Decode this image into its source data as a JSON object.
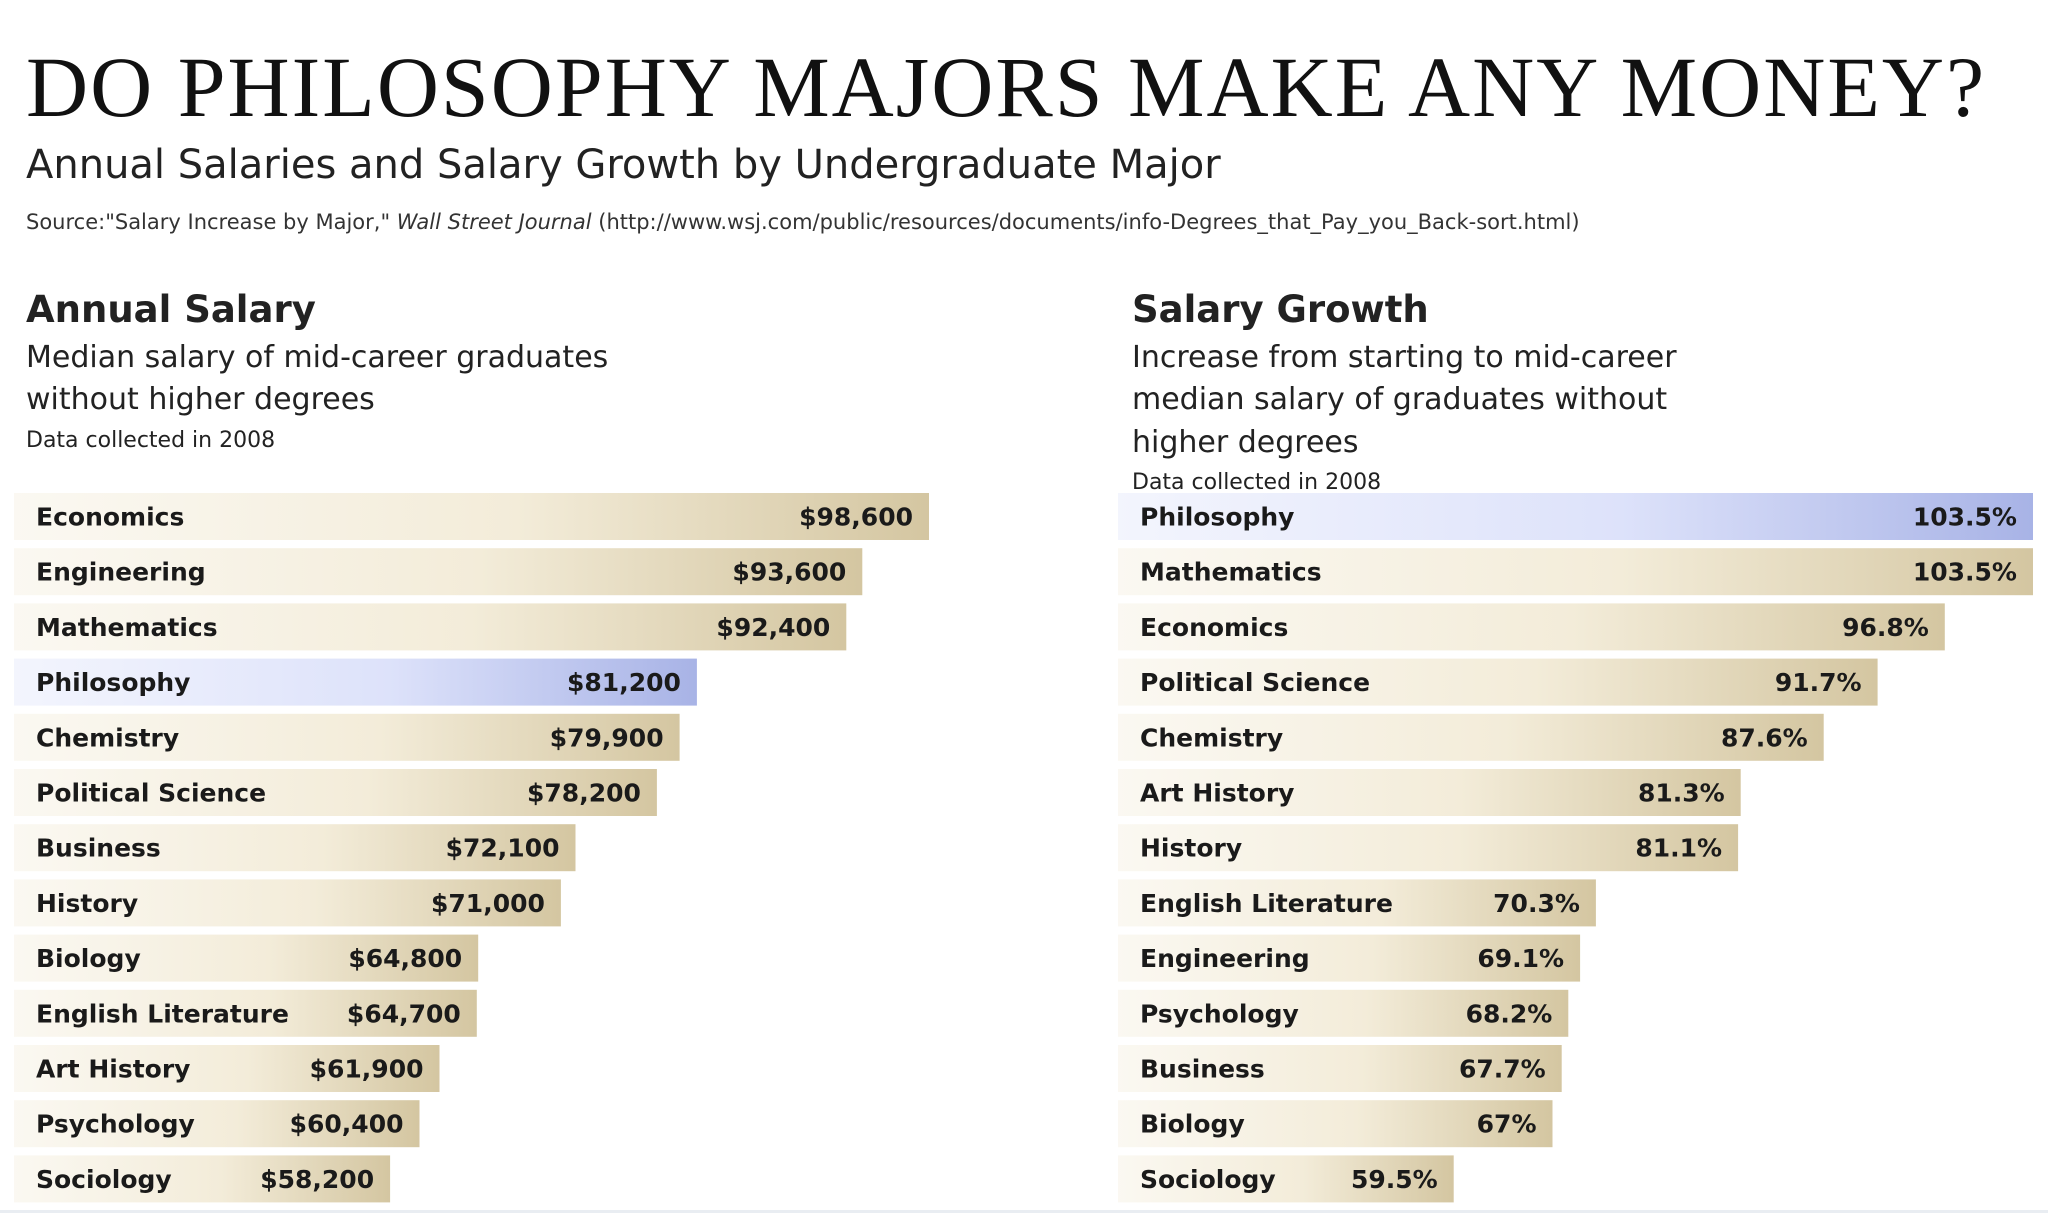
{
  "header": {
    "title": "DO PHILOSOPHY MAJORS MAKE ANY MONEY?",
    "subtitle": "Annual Salaries and Salary Growth by Undergraduate Major",
    "source_prefix": "Source:\"Salary Increase by Major,\" ",
    "source_publication": "Wall Street Journal",
    "source_url": " (http://www.wsj.com/public/resources/documents/info-Degrees_that_Pay_you_Back-sort.html)"
  },
  "colors": {
    "bar_base": "#f3ecd9",
    "bar_end": "#d4c6a1",
    "highlight_base": "#dde2fa",
    "highlight_end": "#a8b3e6",
    "text": "#1a1a1a"
  },
  "chart_data": [
    {
      "type": "bar",
      "orientation": "horizontal",
      "title": "Annual Salary",
      "description": "Median salary of mid-career graduates without higher degrees",
      "note": "Data collected in 2008",
      "categories": [
        "Economics",
        "Engineering",
        "Mathematics",
        "Philosophy",
        "Chemistry",
        "Political Science",
        "Business",
        "History",
        "Biology",
        "English Literature",
        "Art History",
        "Psychology",
        "Sociology"
      ],
      "values": [
        98600,
        93600,
        92400,
        81200,
        79900,
        78200,
        72100,
        71000,
        64800,
        64700,
        61900,
        60400,
        58200
      ],
      "value_labels": [
        "$98,600",
        "$93,600",
        "$92,400",
        "$81,200",
        "$79,900",
        "$78,200",
        "$72,100",
        "$71,000",
        "$64,800",
        "$64,700",
        "$61,900",
        "$60,400",
        "$58,200"
      ],
      "highlight": "Philosophy"
    },
    {
      "type": "bar",
      "orientation": "horizontal",
      "title": "Salary Growth",
      "description": "Increase from starting to mid-career median salary of graduates without higher degrees",
      "note": "Data collected in 2008",
      "categories": [
        "Philosophy",
        "Mathematics",
        "Economics",
        "Political Science",
        "Chemistry",
        "Art History",
        "History",
        "English Literature",
        "Engineering",
        "Psychology",
        "Business",
        "Biology",
        "Sociology"
      ],
      "values": [
        103.5,
        103.5,
        96.8,
        91.7,
        87.6,
        81.3,
        81.1,
        70.3,
        69.1,
        68.2,
        67.7,
        67,
        59.5
      ],
      "value_labels": [
        "103.5%",
        "103.5%",
        "96.8%",
        "91.7%",
        "87.6%",
        "81.3%",
        "81.1%",
        "70.3%",
        "69.1%",
        "68.2%",
        "67.7%",
        "67%",
        "59.5%"
      ],
      "highlight": "Philosophy"
    }
  ]
}
